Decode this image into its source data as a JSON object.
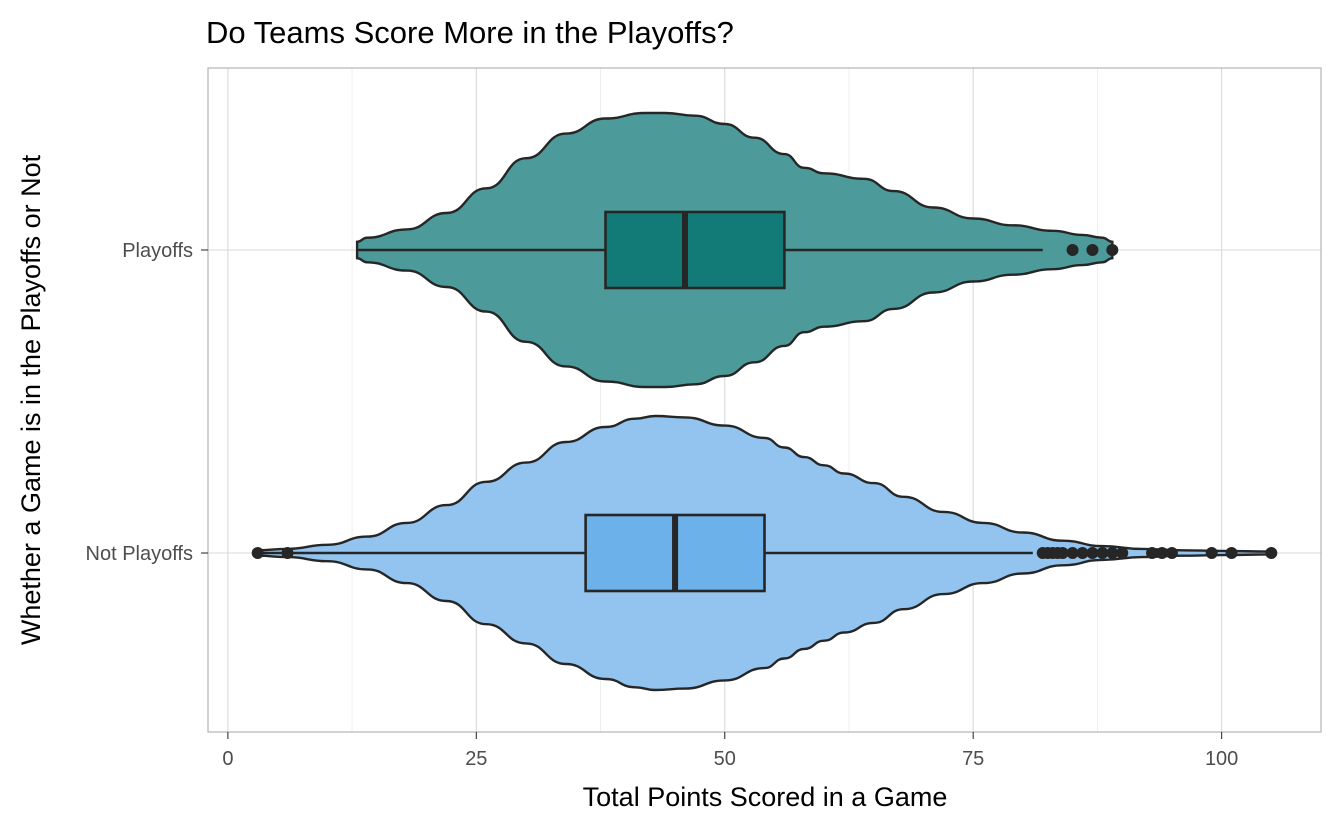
{
  "chart_data": {
    "type": "violin",
    "orientation": "horizontal",
    "title": "Do Teams Score More in the Playoffs?",
    "xlabel": "Total Points Scored in a Game",
    "ylabel": "Whether a Game is in the Playoffs or Not",
    "xlim": [
      -2,
      110
    ],
    "x_ticks": [
      0,
      25,
      50,
      75,
      100
    ],
    "x_tick_labels": [
      "0",
      "25",
      "50",
      "75",
      "100"
    ],
    "categories": [
      "Not Playoffs",
      "Playoffs"
    ],
    "grid": true,
    "series": [
      {
        "category": "Playoffs",
        "violin_color": "#4c9b9a",
        "box_color": "#127b78",
        "min": 13,
        "max": 89,
        "q1": 38,
        "median": 46,
        "q3": 56,
        "whisker_low": 13,
        "whisker_high": 82,
        "outliers": [
          85,
          87,
          89
        ],
        "density": [
          [
            13,
            0.06
          ],
          [
            14,
            0.09
          ],
          [
            18,
            0.15
          ],
          [
            22,
            0.27
          ],
          [
            26,
            0.45
          ],
          [
            30,
            0.67
          ],
          [
            34,
            0.85
          ],
          [
            38,
            0.96
          ],
          [
            42,
            1.0
          ],
          [
            44,
            1.0
          ],
          [
            47,
            0.98
          ],
          [
            50,
            0.92
          ],
          [
            53,
            0.82
          ],
          [
            56,
            0.7
          ],
          [
            58,
            0.6
          ],
          [
            60,
            0.56
          ],
          [
            64,
            0.52
          ],
          [
            67,
            0.43
          ],
          [
            71,
            0.31
          ],
          [
            75,
            0.23
          ],
          [
            79,
            0.18
          ],
          [
            83,
            0.14
          ],
          [
            86,
            0.11
          ],
          [
            88,
            0.09
          ],
          [
            89,
            0.06
          ]
        ]
      },
      {
        "category": "Not Playoffs",
        "violin_color": "#92c4ef",
        "box_color": "#6cb1ea",
        "min": 3,
        "max": 105,
        "q1": 36,
        "median": 45,
        "q3": 54,
        "whisker_low": 3,
        "whisker_high": 81,
        "outliers": [
          3,
          6,
          82,
          82.5,
          83,
          83.5,
          84,
          85,
          86,
          87,
          88,
          89,
          90,
          93,
          94,
          95,
          99,
          101,
          105
        ],
        "density": [
          [
            3,
            0.02
          ],
          [
            6,
            0.03
          ],
          [
            10,
            0.06
          ],
          [
            14,
            0.12
          ],
          [
            18,
            0.22
          ],
          [
            22,
            0.35
          ],
          [
            26,
            0.52
          ],
          [
            30,
            0.66
          ],
          [
            34,
            0.81
          ],
          [
            38,
            0.92
          ],
          [
            41,
            0.98
          ],
          [
            43,
            1.0
          ],
          [
            46,
            0.99
          ],
          [
            50,
            0.93
          ],
          [
            54,
            0.84
          ],
          [
            56,
            0.77
          ],
          [
            58,
            0.7
          ],
          [
            60,
            0.64
          ],
          [
            62,
            0.58
          ],
          [
            65,
            0.51
          ],
          [
            68,
            0.41
          ],
          [
            72,
            0.3
          ],
          [
            76,
            0.22
          ],
          [
            80,
            0.15
          ],
          [
            84,
            0.09
          ],
          [
            88,
            0.05
          ],
          [
            92,
            0.03
          ],
          [
            96,
            0.02
          ],
          [
            100,
            0.015
          ],
          [
            105,
            0.01
          ]
        ]
      }
    ]
  }
}
